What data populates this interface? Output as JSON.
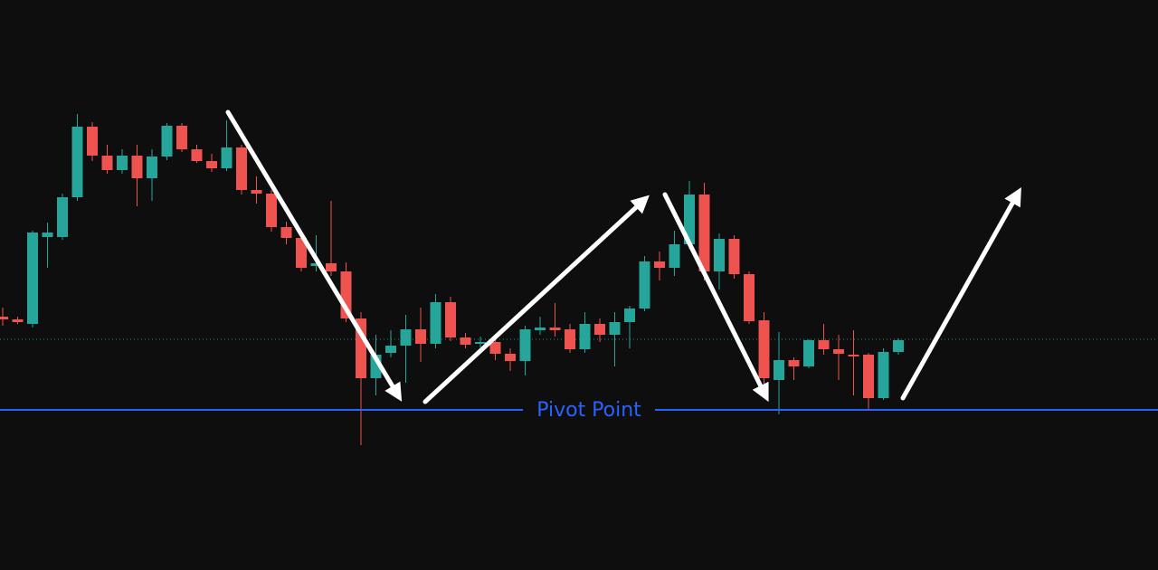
{
  "chart_data": {
    "type": "candlestick",
    "ylim": [
      0,
      630
    ],
    "up_color": "#26a69a",
    "down_color": "#ef5350",
    "open": [
      280,
      277,
      272,
      368,
      368,
      412,
      490,
      458,
      442,
      458,
      433,
      457,
      491,
      465,
      452,
      444,
      467,
      420,
      416,
      379,
      367,
      336,
      339,
      330,
      278,
      212,
      240,
      248,
      266,
      250,
      296,
      257,
      250,
      252,
      239,
      231,
      265,
      268,
      266,
      244,
      272,
      260,
      274,
      289,
      341,
      334,
      360,
      415,
      330,
      366,
      327,
      276,
      210,
      232,
      225,
      254,
      244,
      238,
      238,
      190,
      241
    ],
    "high": [
      290,
      280,
      375,
      384,
      416,
      504,
      495,
      470,
      465,
      470,
      465,
      494,
      494,
      470,
      460,
      497,
      470,
      435,
      420,
      385,
      372,
      370,
      408,
      340,
      285,
      260,
      265,
      282,
      290,
      305,
      302,
      262,
      258,
      255,
      245,
      270,
      280,
      295,
      272,
      285,
      278,
      285,
      292,
      347,
      352,
      375,
      430,
      428,
      372,
      370,
      330,
      285,
      263,
      235,
      255,
      272,
      260,
      265,
      240,
      245,
      256
    ],
    "low": [
      270,
      272,
      268,
      334,
      365,
      408,
      452,
      438,
      438,
      402,
      408,
      453,
      462,
      450,
      440,
      441,
      415,
      405,
      374,
      360,
      330,
      330,
      325,
      274,
      138,
      193,
      235,
      207,
      230,
      245,
      253,
      245,
      246,
      232,
      220,
      215,
      260,
      258,
      240,
      240,
      252,
      225,
      245,
      286,
      320,
      325,
      355,
      320,
      310,
      322,
      272,
      205,
      172,
      210,
      223,
      238,
      210,
      193,
      178,
      188,
      238
    ],
    "close": [
      277,
      274,
      373,
      373,
      412,
      490,
      458,
      442,
      458,
      433,
      457,
      491,
      465,
      452,
      444,
      467,
      420,
      416,
      379,
      367,
      334,
      339,
      330,
      278,
      212,
      238,
      248,
      266,
      250,
      296,
      257,
      249,
      252,
      239,
      231,
      266,
      268,
      265,
      244,
      272,
      260,
      274,
      289,
      341,
      334,
      360,
      415,
      330,
      366,
      327,
      275,
      212,
      232,
      225,
      254,
      244,
      239,
      236,
      190,
      241,
      254
    ],
    "pivot": {
      "label": "Pivot Point",
      "value": 177,
      "color": "#2962ff"
    },
    "last_price_line": {
      "value": 255,
      "color": "#26a69a"
    }
  }
}
